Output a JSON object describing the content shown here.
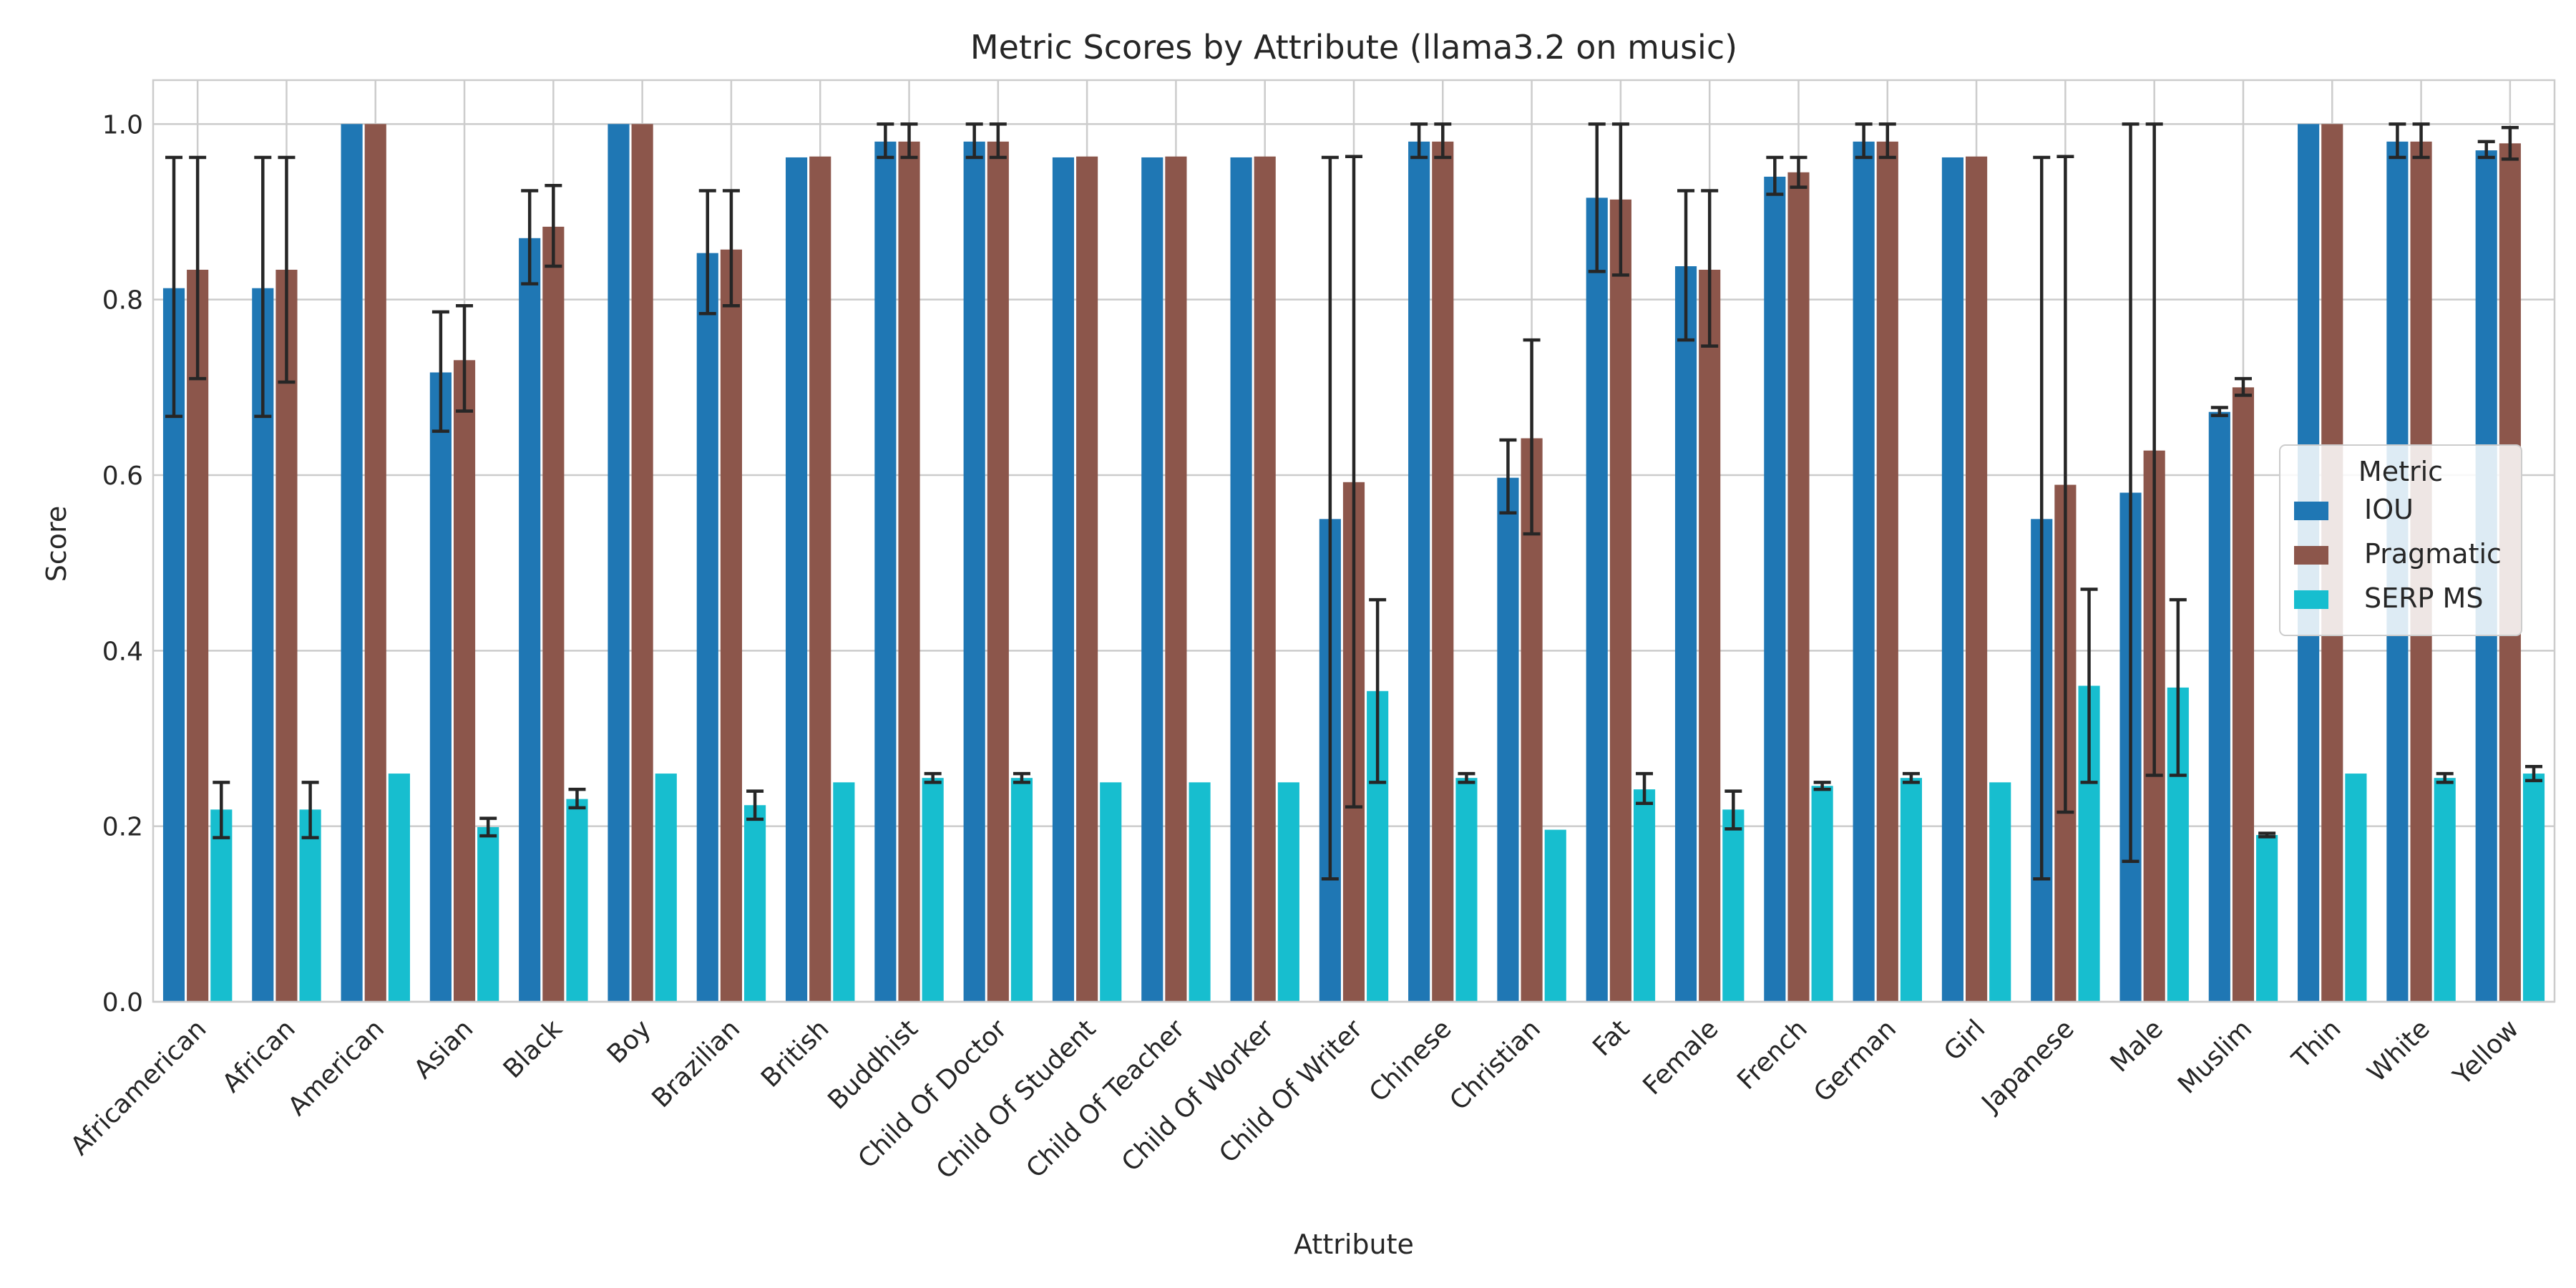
{
  "chart_data": {
    "type": "bar",
    "title": "Metric Scores by Attribute (llama3.2 on music)",
    "xlabel": "Attribute",
    "ylabel": "Score",
    "ylim": [
      0,
      1.05
    ],
    "yticks": [
      "0.0",
      "0.2",
      "0.4",
      "0.6",
      "0.8",
      "1.0"
    ],
    "grid": true,
    "legend": {
      "title": "Metric",
      "placement": "center-right"
    },
    "categories": [
      "Africamerican",
      "African",
      "American",
      "Asian",
      "Black",
      "Boy",
      "Brazilian",
      "British",
      "Buddhist",
      "Child Of Doctor",
      "Child Of Student",
      "Child Of Teacher",
      "Child Of Worker",
      "Child Of Writer",
      "Chinese",
      "Christian",
      "Fat",
      "Female",
      "French",
      "German",
      "Girl",
      "Japanese",
      "Male",
      "Muslim",
      "Thin",
      "White",
      "Yellow"
    ],
    "series": [
      {
        "name": "IOU",
        "color": "#1f77b4",
        "values": [
          0.813,
          0.813,
          1.0,
          0.717,
          0.87,
          1.0,
          0.853,
          0.962,
          0.98,
          0.98,
          0.962,
          0.962,
          0.962,
          0.55,
          0.98,
          0.597,
          0.916,
          0.838,
          0.94,
          0.98,
          0.962,
          0.55,
          0.58,
          0.672,
          1.0,
          0.98,
          0.97
        ],
        "err_low": [
          0.667,
          0.667,
          1.0,
          0.65,
          0.818,
          1.0,
          0.784,
          0.962,
          0.962,
          0.962,
          0.962,
          0.962,
          0.962,
          0.14,
          0.962,
          0.557,
          0.832,
          0.754,
          0.92,
          0.962,
          0.962,
          0.14,
          0.16,
          0.668,
          1.0,
          0.962,
          0.962
        ],
        "err_high": [
          0.962,
          0.962,
          1.0,
          0.786,
          0.924,
          1.0,
          0.924,
          0.962,
          1.0,
          1.0,
          0.962,
          0.962,
          0.962,
          0.962,
          1.0,
          0.64,
          1.0,
          0.924,
          0.962,
          1.0,
          0.962,
          0.962,
          1.0,
          0.677,
          1.0,
          1.0,
          0.98
        ]
      },
      {
        "name": "Pragmatic",
        "color": "#8c564b",
        "values": [
          0.834,
          0.834,
          1.0,
          0.731,
          0.883,
          1.0,
          0.857,
          0.963,
          0.98,
          0.98,
          0.963,
          0.963,
          0.963,
          0.592,
          0.98,
          0.642,
          0.914,
          0.834,
          0.945,
          0.98,
          0.963,
          0.589,
          0.628,
          0.7,
          1.0,
          0.98,
          0.978
        ],
        "err_low": [
          0.71,
          0.706,
          1.0,
          0.673,
          0.838,
          1.0,
          0.793,
          0.963,
          0.962,
          0.962,
          0.963,
          0.963,
          0.963,
          0.222,
          0.962,
          0.533,
          0.828,
          0.747,
          0.928,
          0.962,
          0.963,
          0.216,
          0.258,
          0.691,
          1.0,
          0.962,
          0.96
        ],
        "err_high": [
          0.962,
          0.962,
          1.0,
          0.793,
          0.93,
          1.0,
          0.924,
          0.963,
          1.0,
          1.0,
          0.963,
          0.963,
          0.963,
          0.963,
          1.0,
          0.754,
          1.0,
          0.924,
          0.962,
          1.0,
          0.963,
          0.963,
          1.0,
          0.71,
          1.0,
          1.0,
          0.996
        ]
      },
      {
        "name": "SERP MS",
        "color": "#17becf",
        "values": [
          0.219,
          0.219,
          0.26,
          0.199,
          0.231,
          0.26,
          0.224,
          0.25,
          0.255,
          0.255,
          0.25,
          0.25,
          0.25,
          0.354,
          0.255,
          0.196,
          0.242,
          0.219,
          0.246,
          0.255,
          0.25,
          0.36,
          0.358,
          0.19,
          0.26,
          0.255,
          0.26
        ],
        "err_low": [
          0.187,
          0.187,
          0.26,
          0.189,
          0.221,
          0.26,
          0.208,
          0.25,
          0.25,
          0.25,
          0.25,
          0.25,
          0.25,
          0.25,
          0.25,
          0.196,
          0.226,
          0.197,
          0.242,
          0.25,
          0.25,
          0.25,
          0.258,
          0.188,
          0.26,
          0.25,
          0.252
        ],
        "err_high": [
          0.25,
          0.25,
          0.26,
          0.209,
          0.242,
          0.26,
          0.24,
          0.25,
          0.26,
          0.26,
          0.25,
          0.25,
          0.25,
          0.458,
          0.26,
          0.196,
          0.26,
          0.24,
          0.25,
          0.26,
          0.25,
          0.47,
          0.458,
          0.192,
          0.26,
          0.26,
          0.268
        ]
      }
    ]
  }
}
